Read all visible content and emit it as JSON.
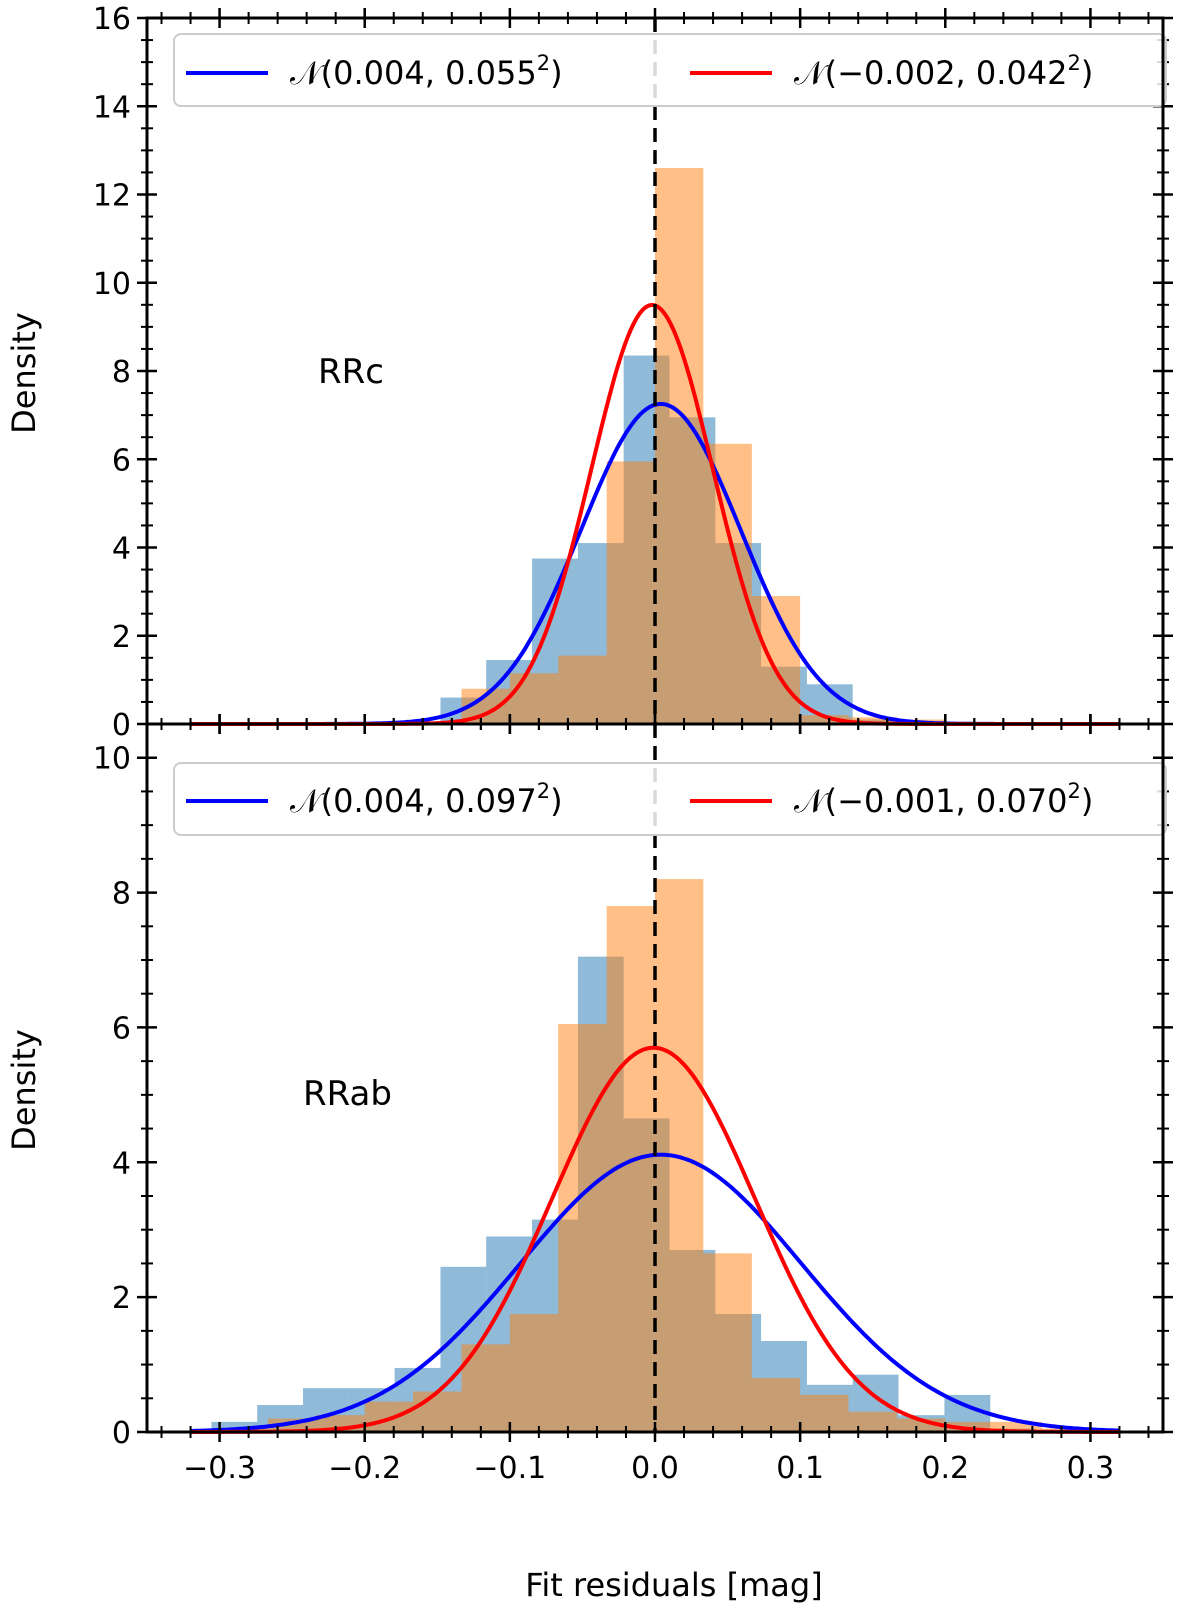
{
  "chart_data": [
    {
      "type": "bar",
      "panel": "top",
      "annotation": "RRc",
      "ylabel": "Density",
      "xlim": [
        -0.35,
        0.35
      ],
      "ylim": [
        0,
        16
      ],
      "yticks": [
        0,
        2,
        4,
        6,
        8,
        10,
        12,
        14,
        16
      ],
      "bin_edges": [
        -0.3,
        -0.2625,
        -0.225,
        -0.1875,
        -0.15,
        -0.1125,
        -0.075,
        -0.0375,
        0.0,
        0.0375,
        0.075,
        0.1125,
        0.15,
        0.1875,
        0.225,
        0.2625,
        0.3
      ],
      "bin_centers": [
        -0.3214,
        -0.2857,
        -0.25,
        -0.2143,
        -0.1786,
        -0.1429,
        -0.1071,
        -0.0714,
        -0.0357,
        0.0,
        0.0357,
        0.0714,
        0.1071,
        0.1429,
        0.1786,
        0.2143,
        0.25,
        0.2857,
        0.3214
      ],
      "series": [
        {
          "name": "blue histogram",
          "color": "#1f77b4",
          "edges": [
            -0.3056,
            -0.2741,
            -0.2425,
            -0.2109,
            -0.1794,
            -0.1478,
            -0.1163,
            -0.0847,
            -0.0531,
            -0.0216,
            0.01,
            0.0416,
            0.0731,
            0.1047,
            0.1362,
            0.1678,
            0.1994,
            0.231,
            0.2625
          ],
          "values": [
            0.02,
            0,
            0,
            0,
            0,
            0.6,
            1.45,
            3.75,
            4.1,
            8.35,
            6.95,
            4.1,
            1.3,
            0.9,
            0.1,
            0.05,
            0.02,
            0
          ]
        },
        {
          "name": "orange histogram",
          "color": "#ff7f0e",
          "edges": [
            -0.3,
            -0.2667,
            -0.2333,
            -0.2,
            -0.1667,
            -0.1333,
            -0.1,
            -0.0667,
            -0.0333,
            0.0,
            0.0333,
            0.0667,
            0.1,
            0.1333,
            0.1667,
            0.2,
            0.2333,
            0.2667,
            0.3
          ],
          "values": [
            0.02,
            0.01,
            0,
            0,
            0,
            0.8,
            1.15,
            1.55,
            5.95,
            12.6,
            6.35,
            2.9,
            0.2,
            0.15,
            0.1,
            0.05,
            0,
            0
          ]
        }
      ],
      "curves": [
        {
          "name": "N(0.004, 0.055^2)",
          "mu": 0.004,
          "sigma": 0.055,
          "color": "#0000ff"
        },
        {
          "name": "N(-0.002, 0.042^2)",
          "mu": -0.002,
          "sigma": 0.042,
          "color": "#ff0000"
        }
      ],
      "legend": {
        "placement": "top",
        "items": [
          {
            "label_base": "𝒩(0.004, 0.055",
            "label_sup": "2",
            "label_end": ")",
            "color": "#0000ff"
          },
          {
            "label_base": "𝒩(−0.002, 0.042",
            "label_sup": "2",
            "label_end": ")",
            "color": "#ff0000"
          }
        ]
      }
    },
    {
      "type": "bar",
      "panel": "bottom",
      "annotation": "RRab",
      "ylabel": "Density",
      "xlabel": "Fit residuals [mag]",
      "xlim": [
        -0.35,
        0.35
      ],
      "ylim": [
        0,
        10.5
      ],
      "yticks": [
        0,
        2,
        4,
        6,
        8,
        10
      ],
      "xticks": [
        -0.3,
        -0.2,
        -0.1,
        0.0,
        0.1,
        0.2,
        0.3
      ],
      "xtick_labels": [
        "−0.3",
        "−0.2",
        "−0.1",
        "0.0",
        "0.1",
        "0.2",
        "0.3"
      ],
      "series": [
        {
          "name": "blue histogram",
          "color": "#1f77b4",
          "edges": [
            -0.3056,
            -0.2741,
            -0.2425,
            -0.2109,
            -0.1794,
            -0.1478,
            -0.1163,
            -0.0847,
            -0.0531,
            -0.0216,
            0.01,
            0.0416,
            0.0731,
            0.1047,
            0.1362,
            0.1678,
            0.1994,
            0.231,
            0.2625
          ],
          "values": [
            0.15,
            0.4,
            0.65,
            0.65,
            0.95,
            2.45,
            2.9,
            3.15,
            7.05,
            4.65,
            2.7,
            1.75,
            1.35,
            0.7,
            0.85,
            0.25,
            0.55,
            0.05
          ]
        },
        {
          "name": "orange histogram",
          "color": "#ff7f0e",
          "edges": [
            -0.3,
            -0.2667,
            -0.2333,
            -0.2,
            -0.1667,
            -0.1333,
            -0.1,
            -0.0667,
            -0.0333,
            0.0,
            0.0333,
            0.0667,
            0.1,
            0.1333,
            0.1667,
            0.2,
            0.2333,
            0.2667,
            0.3
          ],
          "values": [
            0.05,
            0.2,
            0.25,
            0.45,
            0.6,
            1.3,
            1.75,
            6.05,
            7.8,
            8.2,
            2.65,
            0.8,
            0.55,
            0.3,
            0.2,
            0.15,
            0.15,
            0.05
          ]
        }
      ],
      "curves": [
        {
          "name": "N(0.004, 0.097^2)",
          "mu": 0.004,
          "sigma": 0.097,
          "color": "#0000ff"
        },
        {
          "name": "N(-0.001, 0.070^2)",
          "mu": -0.001,
          "sigma": 0.07,
          "color": "#ff0000"
        }
      ],
      "legend": {
        "placement": "top",
        "items": [
          {
            "label_base": "𝒩(0.004, 0.097",
            "label_sup": "2",
            "label_end": ")",
            "color": "#0000ff"
          },
          {
            "label_base": "𝒩(−0.001, 0.070",
            "label_sup": "2",
            "label_end": ")",
            "color": "#ff0000"
          }
        ]
      }
    }
  ]
}
